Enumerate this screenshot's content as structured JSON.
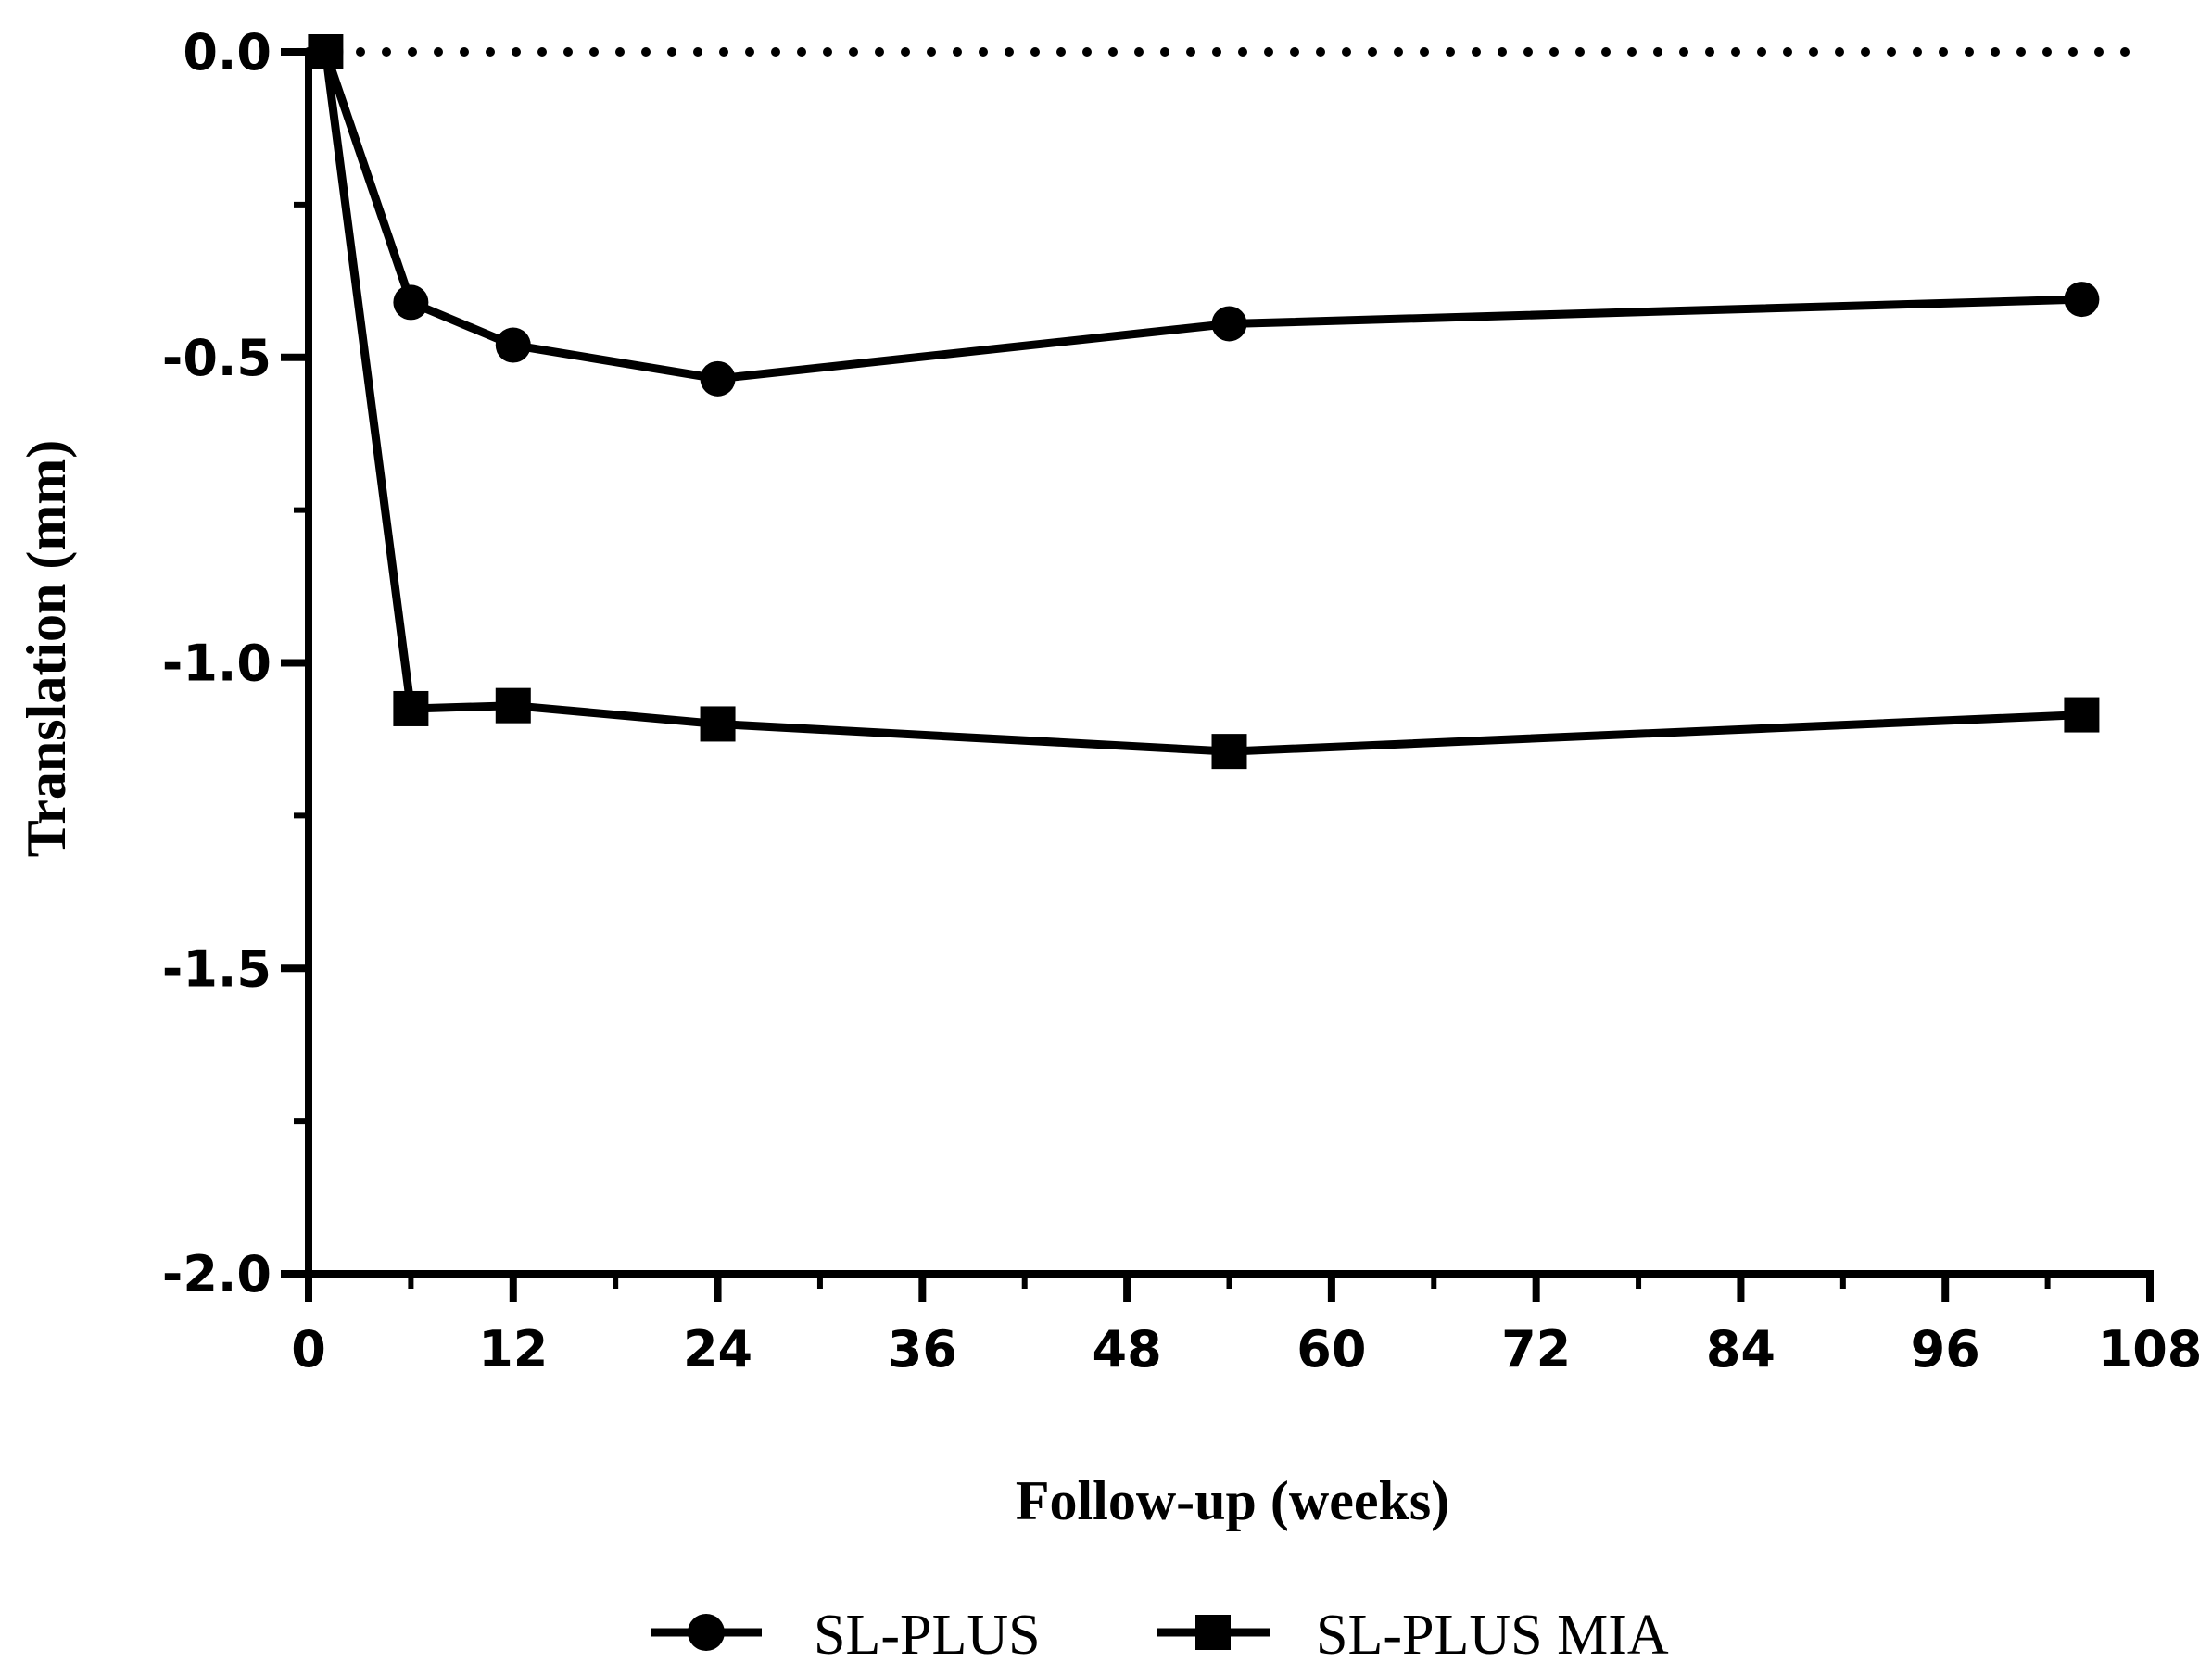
{
  "chart_data": {
    "type": "line",
    "title": "",
    "xlabel": "Follow-up (weeks)",
    "ylabel": "Translation (mm)",
    "xlim": [
      0,
      108
    ],
    "ylim": [
      -2.0,
      0.0
    ],
    "x_ticks": [
      0,
      12,
      24,
      36,
      48,
      60,
      72,
      84,
      96,
      108
    ],
    "x_tick_labels": [
      "0",
      "12",
      "24",
      "36",
      "48",
      "60",
      "72",
      "84",
      "96",
      "108"
    ],
    "x_minor_step": 6,
    "y_ticks": [
      0.0,
      -0.5,
      -1.0,
      -1.5,
      -2.0
    ],
    "y_tick_labels": [
      "0.0",
      "-0.5",
      "-1.0",
      "-1.5",
      "-2.0"
    ],
    "y_minor_step": 0.25,
    "reference_line": {
      "y": 0.0,
      "style": "dotted"
    },
    "grid": false,
    "legend_position": "bottom",
    "series": [
      {
        "name": "SL-PLUS",
        "marker": "circle",
        "color": "#000000",
        "x": [
          1,
          6,
          12,
          24,
          54,
          104
        ],
        "y": [
          0.0,
          -0.41,
          -0.48,
          -0.535,
          -0.445,
          -0.405
        ]
      },
      {
        "name": "SL-PLUS MIA",
        "marker": "square",
        "color": "#000000",
        "x": [
          1,
          6,
          12,
          24,
          54,
          104
        ],
        "y": [
          0.0,
          -1.075,
          -1.07,
          -1.1,
          -1.145,
          -1.085
        ]
      }
    ]
  }
}
